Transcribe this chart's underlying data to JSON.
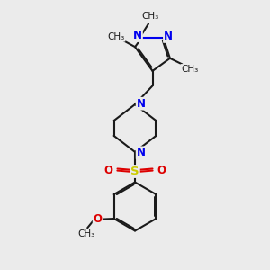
{
  "bg_color": "#ebebeb",
  "bond_color": "#1a1a1a",
  "n_color": "#0000ee",
  "o_color": "#dd0000",
  "s_color": "#cccc00",
  "lw": 1.5,
  "dbo": 0.055,
  "fs": 8.5,
  "fsm": 7.5,
  "figsize": [
    3.0,
    3.0
  ],
  "dpi": 100,
  "xlim": [
    0,
    10
  ],
  "ylim": [
    0,
    10
  ]
}
